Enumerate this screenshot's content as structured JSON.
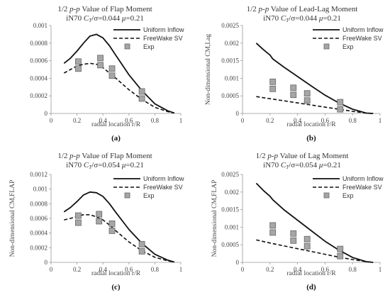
{
  "chart_data": [
    {
      "type": "line",
      "panel_label": "(a)",
      "title_line1_pre": "1/2 ",
      "title_line1_it": "p-p",
      "title_line1_post": " Value of Flap Moment",
      "title_line2_pre": "iN70 ",
      "title_line2_c": "C",
      "title_line2_sub": "T",
      "title_line2_mid": "/σ=0.044 ",
      "title_line2_mu": "μ",
      "title_line2_post": "=0.21",
      "xlabel": "radial location r/R",
      "ylabel": "",
      "xlim": [
        0,
        1
      ],
      "ylim": [
        0,
        0.001
      ],
      "xticks": [
        "0",
        "0.2",
        "0.4",
        "0.6",
        "0.8",
        "1"
      ],
      "yticks": [
        "0",
        "0.0002",
        "0.0004",
        "0.0006",
        "0.0008",
        "0.001"
      ],
      "legend_position": "top-right",
      "series": [
        {
          "name": "Uniform Inflow",
          "style": "solid",
          "x": [
            0.1,
            0.15,
            0.2,
            0.25,
            0.3,
            0.35,
            0.4,
            0.45,
            0.5,
            0.6,
            0.7,
            0.8,
            0.9,
            0.95
          ],
          "y": [
            0.00057,
            0.00063,
            0.00071,
            0.0008,
            0.00088,
            0.0009,
            0.00086,
            0.00077,
            0.00066,
            0.00044,
            0.00026,
            0.00011,
            3e-05,
            5e-06
          ]
        },
        {
          "name": "FreeWake SV",
          "style": "dashed",
          "x": [
            0.1,
            0.15,
            0.2,
            0.25,
            0.3,
            0.35,
            0.4,
            0.45,
            0.5,
            0.6,
            0.7,
            0.8,
            0.9,
            0.95
          ],
          "y": [
            0.00046,
            0.0005,
            0.00054,
            0.00056,
            0.00057,
            0.00056,
            0.00052,
            0.00046,
            0.0004,
            0.00027,
            0.00016,
            7e-05,
            2e-05,
            5e-06
          ]
        },
        {
          "name": "Exp",
          "style": "marker",
          "x": [
            0.21,
            0.38,
            0.47,
            0.7
          ],
          "y": [
            0.00055,
            0.00059,
            0.00047,
            0.00021
          ]
        }
      ]
    },
    {
      "type": "line",
      "panel_label": "(b)",
      "title_line1_pre": "1/2 ",
      "title_line1_it": "p-p",
      "title_line1_post": " Value of Lead-Lag Moment",
      "title_line2_pre": "iN70 ",
      "title_line2_c": "C",
      "title_line2_sub": "T",
      "title_line2_mid": "/σ=0.044 ",
      "title_line2_mu": "μ",
      "title_line2_post": "=0.21",
      "xlabel": "radial location r/R",
      "ylabel": "Non-dimensional CM,Lag",
      "xlim": [
        0,
        1
      ],
      "ylim": [
        0,
        0.0025
      ],
      "xticks": [
        "0",
        "0.2",
        "0.4",
        "0.6",
        "0.8",
        "1"
      ],
      "yticks": [
        "0",
        "0.0005",
        "0.001",
        "0.0015",
        "0.002",
        "0.0025"
      ],
      "legend_position": "top-right",
      "series": [
        {
          "name": "Uniform Inflow",
          "style": "solid",
          "x": [
            0.1,
            0.15,
            0.2,
            0.22,
            0.3,
            0.4,
            0.5,
            0.6,
            0.7,
            0.8,
            0.9,
            0.95
          ],
          "y": [
            0.002,
            0.00182,
            0.00166,
            0.00155,
            0.00132,
            0.00105,
            0.00078,
            0.00052,
            0.0003,
            0.00012,
            1e-05,
            0.0
          ]
        },
        {
          "name": "FreeWake SV",
          "style": "dashed",
          "x": [
            0.1,
            0.2,
            0.3,
            0.4,
            0.5,
            0.6,
            0.7,
            0.8,
            0.9,
            0.95
          ],
          "y": [
            0.00048,
            0.00042,
            0.00036,
            0.0003,
            0.00024,
            0.00018,
            0.00012,
            6e-05,
            1e-05,
            0.0
          ]
        },
        {
          "name": "Exp",
          "style": "marker",
          "x": [
            0.22,
            0.37,
            0.47,
            0.71
          ],
          "y": [
            0.0008,
            0.00063,
            0.00047,
            0.00022
          ]
        }
      ]
    },
    {
      "type": "line",
      "panel_label": "(c)",
      "title_line1_pre": "1/2 ",
      "title_line1_it": "p-p",
      "title_line1_post": " Value of Flap Moment",
      "title_line2_pre": "iN70 ",
      "title_line2_c": "C",
      "title_line2_sub": "T",
      "title_line2_mid": "/σ=0.054 ",
      "title_line2_mu": "μ",
      "title_line2_post": "=0.21",
      "xlabel": "radial location r/R",
      "ylabel": "Non-dimensional CM,FLAP",
      "xlim": [
        0,
        1
      ],
      "ylim": [
        0,
        0.0012
      ],
      "xticks": [
        "0",
        "0.2",
        "0.4",
        "0.6",
        "0.8",
        "1"
      ],
      "yticks": [
        "0",
        "0.0002",
        "0.0004",
        "0.0006",
        "0.0008",
        "0.001",
        "0.0012"
      ],
      "legend_position": "top-right",
      "series": [
        {
          "name": "Uniform Inflow",
          "style": "solid",
          "x": [
            0.1,
            0.15,
            0.2,
            0.25,
            0.3,
            0.35,
            0.4,
            0.45,
            0.5,
            0.6,
            0.7,
            0.8,
            0.9,
            0.95
          ],
          "y": [
            0.00069,
            0.00075,
            0.00083,
            0.00092,
            0.00096,
            0.00095,
            0.0009,
            0.0008,
            0.00068,
            0.00045,
            0.00026,
            0.00011,
            3e-05,
            5e-06
          ]
        },
        {
          "name": "FreeWake SV",
          "style": "dashed",
          "x": [
            0.1,
            0.15,
            0.2,
            0.25,
            0.3,
            0.35,
            0.4,
            0.45,
            0.5,
            0.6,
            0.7,
            0.8,
            0.9,
            0.95
          ],
          "y": [
            0.00058,
            0.0006,
            0.00063,
            0.00065,
            0.00065,
            0.00062,
            0.00058,
            0.00051,
            0.00043,
            0.00028,
            0.00016,
            7e-05,
            2e-05,
            5e-06
          ]
        },
        {
          "name": "Exp",
          "style": "marker",
          "x": [
            0.21,
            0.37,
            0.47,
            0.7
          ],
          "y": [
            0.00059,
            0.00061,
            0.00048,
            0.0002
          ]
        }
      ]
    },
    {
      "type": "line",
      "panel_label": "(d)",
      "title_line1_pre": "1/2 ",
      "title_line1_it": "p-p",
      "title_line1_post": " Value of Lag Moment",
      "title_line2_pre": "iN70 ",
      "title_line2_c": "C",
      "title_line2_sub": "T",
      "title_line2_mid": "/σ=0.054 ",
      "title_line2_mu": "μ",
      "title_line2_post": "=0.21",
      "xlabel": "radial location r/R",
      "ylabel": "Non-dimensional CM,FLAP",
      "xlim": [
        0,
        1
      ],
      "ylim": [
        0,
        0.0025
      ],
      "xticks": [
        "0",
        "0.2",
        "0.4",
        "0.6",
        "0.8",
        "1"
      ],
      "yticks": [
        "0",
        "0.0005",
        "0.001",
        "0.0015",
        "0.002",
        "0.0025"
      ],
      "legend_position": "top-right",
      "series": [
        {
          "name": "Uniform Inflow",
          "style": "solid",
          "x": [
            0.1,
            0.15,
            0.2,
            0.22,
            0.3,
            0.4,
            0.5,
            0.6,
            0.7,
            0.8,
            0.9,
            0.95
          ],
          "y": [
            0.00225,
            0.00205,
            0.00188,
            0.00178,
            0.0015,
            0.0012,
            0.0009,
            0.0006,
            0.00035,
            0.00014,
            2e-05,
            0.0
          ]
        },
        {
          "name": "FreeWake SV",
          "style": "dashed",
          "x": [
            0.1,
            0.2,
            0.3,
            0.4,
            0.5,
            0.6,
            0.7,
            0.8,
            0.9,
            0.95
          ],
          "y": [
            0.00064,
            0.00055,
            0.00047,
            0.00039,
            0.00031,
            0.00023,
            0.00015,
            8e-05,
            2e-05,
            0.0
          ]
        },
        {
          "name": "Exp",
          "style": "marker",
          "x": [
            0.22,
            0.37,
            0.47,
            0.71
          ],
          "y": [
            0.00095,
            0.00072,
            0.00056,
            0.00028
          ]
        }
      ]
    }
  ]
}
